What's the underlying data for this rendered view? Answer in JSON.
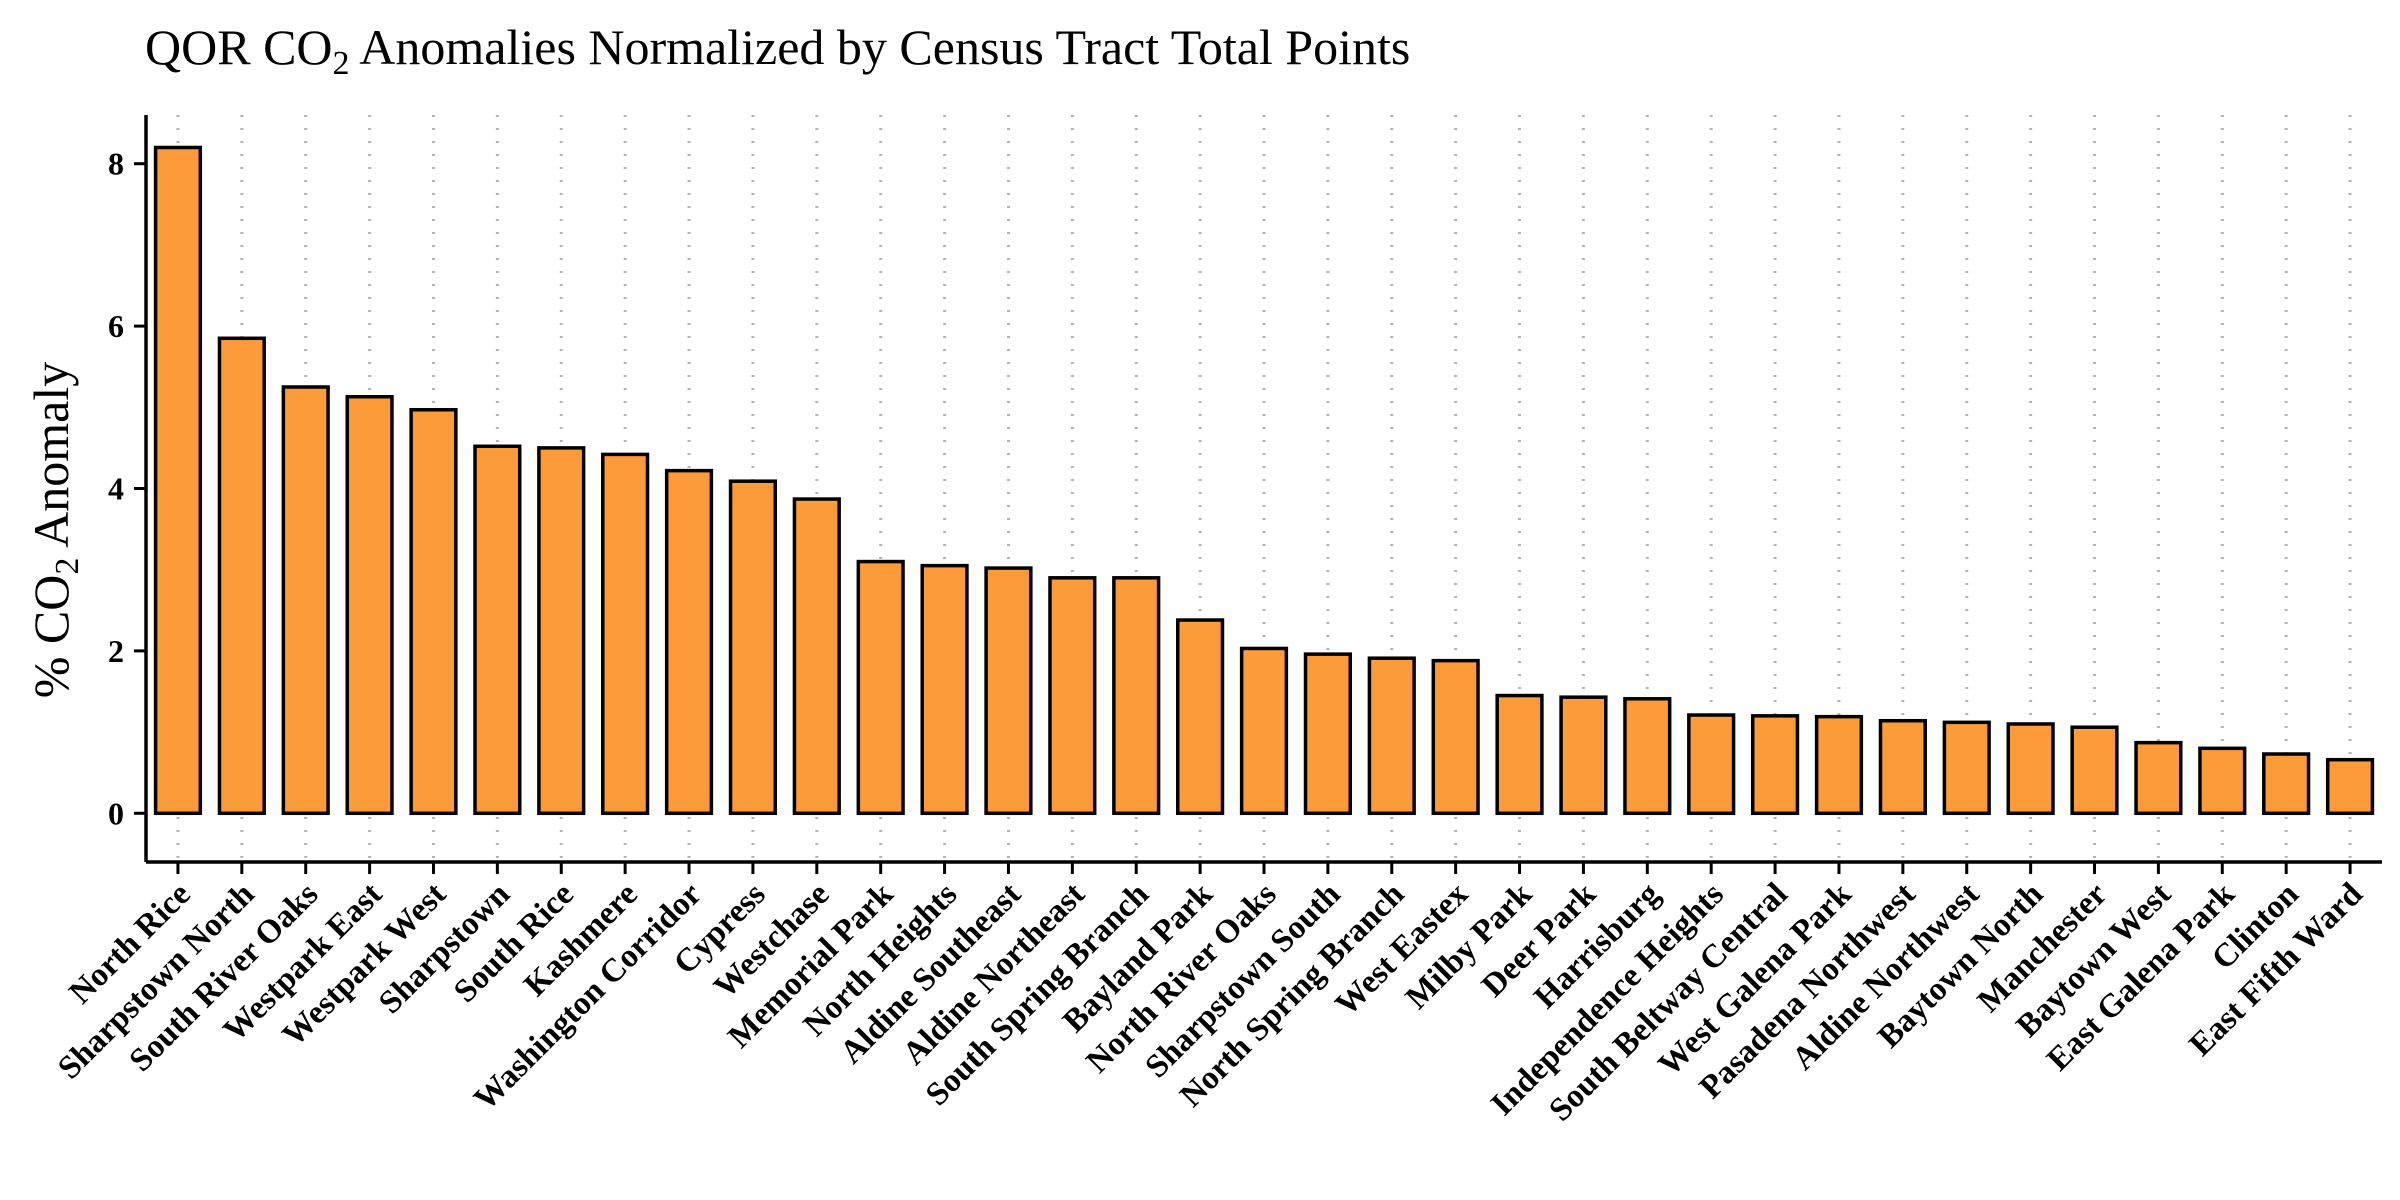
{
  "chart_data": {
    "type": "bar",
    "title_parts": [
      "QOR CO",
      "2",
      " Anomalies Normalized by Census Tract Total Points"
    ],
    "ylabel_parts": [
      "% CO",
      "2",
      " Anomaly"
    ],
    "xlabel": "",
    "ylim": [
      -0.6,
      8.6
    ],
    "yticks": [
      0,
      2,
      4,
      6,
      8
    ],
    "grid": "vertical dotted",
    "colors": {
      "bar_fill": "#fd9a3a",
      "bar_edge": "#000000",
      "grid": "#b3b3b3"
    },
    "categories": [
      "North Rice",
      "Sharpstown North",
      "South River Oaks",
      "Westpark East",
      "Westpark West",
      "Sharpstown",
      "South Rice",
      "Kashmere",
      "Washington Corridor",
      "Cypress",
      "Westchase",
      "Memorial Park",
      "North Heights",
      "Aldine Southeast",
      "Aldine Northeast",
      "South Spring Branch",
      "Bayland Park",
      "North River Oaks",
      "Sharpstown South",
      "North Spring Branch",
      "West Eastex",
      "Milby Park",
      "Deer Park",
      "Harrisburg",
      "Independence Heights",
      "South Beltway Central",
      "West Galena Park",
      "Pasadena Northwest",
      "Aldine Northwest",
      "Baytown North",
      "Manchester",
      "Baytown West",
      "East Galena Park",
      "Clinton",
      "East Fifth Ward"
    ],
    "values": [
      8.2,
      5.85,
      5.25,
      5.13,
      4.97,
      4.52,
      4.5,
      4.42,
      4.22,
      4.09,
      3.87,
      3.1,
      3.05,
      3.02,
      2.9,
      2.9,
      2.38,
      2.03,
      1.96,
      1.91,
      1.88,
      1.45,
      1.43,
      1.41,
      1.21,
      1.2,
      1.19,
      1.14,
      1.12,
      1.1,
      1.06,
      0.87,
      0.8,
      0.73,
      0.66
    ]
  }
}
